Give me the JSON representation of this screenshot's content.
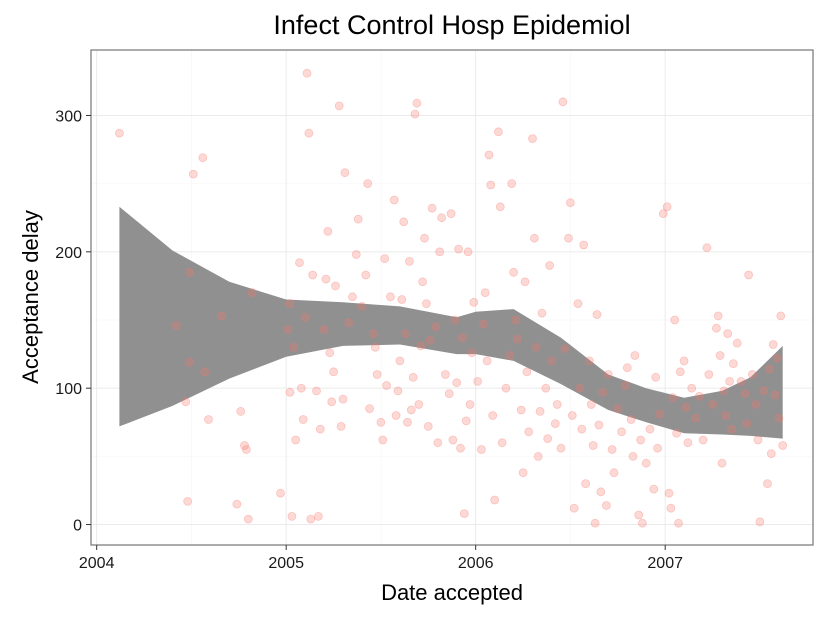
{
  "chart_data": {
    "type": "scatter",
    "title": "Infect Control Hosp Epidemiol",
    "xlabel": "Date accepted",
    "ylabel": "Acceptance delay",
    "xlim": [
      2003.97,
      2007.78
    ],
    "ylim": [
      -15,
      348
    ],
    "xticks": [
      2004,
      2005,
      2006,
      2007
    ],
    "xtick_labels": [
      "2004",
      "2005",
      "2006",
      "2007"
    ],
    "yticks": [
      0,
      100,
      200,
      300
    ],
    "ytick_labels": [
      "0",
      "100",
      "200",
      "300"
    ],
    "grid": true,
    "colors": {
      "points": "#f8766d",
      "band": "#8c8c8c",
      "panel_border": "#7f7f7f",
      "grid_major": "#ebebeb",
      "grid_minor": "#f5f5f5"
    },
    "points": [
      [
        2004.12,
        287
      ],
      [
        2004.42,
        146
      ],
      [
        2004.47,
        90
      ],
      [
        2004.48,
        17
      ],
      [
        2004.49,
        185
      ],
      [
        2004.49,
        119
      ],
      [
        2004.51,
        257
      ],
      [
        2004.56,
        269
      ],
      [
        2004.57,
        112
      ],
      [
        2004.59,
        77
      ],
      [
        2004.66,
        153
      ],
      [
        2004.74,
        15
      ],
      [
        2004.76,
        83
      ],
      [
        2004.78,
        58
      ],
      [
        2004.79,
        55
      ],
      [
        2004.8,
        4
      ],
      [
        2004.82,
        170
      ],
      [
        2004.97,
        23
      ],
      [
        2005.01,
        143
      ],
      [
        2005.02,
        162
      ],
      [
        2005.02,
        97
      ],
      [
        2005.03,
        6
      ],
      [
        2005.04,
        130
      ],
      [
        2005.05,
        62
      ],
      [
        2005.07,
        192
      ],
      [
        2005.08,
        100
      ],
      [
        2005.09,
        77
      ],
      [
        2005.1,
        152
      ],
      [
        2005.11,
        331
      ],
      [
        2005.12,
        287
      ],
      [
        2005.13,
        4
      ],
      [
        2005.14,
        183
      ],
      [
        2005.16,
        98
      ],
      [
        2005.17,
        6
      ],
      [
        2005.18,
        70
      ],
      [
        2005.2,
        143
      ],
      [
        2005.21,
        180
      ],
      [
        2005.22,
        215
      ],
      [
        2005.23,
        126
      ],
      [
        2005.24,
        90
      ],
      [
        2005.25,
        112
      ],
      [
        2005.26,
        175
      ],
      [
        2005.28,
        307
      ],
      [
        2005.29,
        72
      ],
      [
        2005.3,
        92
      ],
      [
        2005.31,
        258
      ],
      [
        2005.33,
        148
      ],
      [
        2005.35,
        167
      ],
      [
        2005.37,
        198
      ],
      [
        2005.38,
        224
      ],
      [
        2005.4,
        160
      ],
      [
        2005.42,
        183
      ],
      [
        2005.43,
        250
      ],
      [
        2005.44,
        85
      ],
      [
        2005.46,
        140
      ],
      [
        2005.47,
        130
      ],
      [
        2005.48,
        110
      ],
      [
        2005.5,
        75
      ],
      [
        2005.51,
        62
      ],
      [
        2005.52,
        195
      ],
      [
        2005.53,
        102
      ],
      [
        2005.55,
        167
      ],
      [
        2005.57,
        238
      ],
      [
        2005.58,
        80
      ],
      [
        2005.59,
        98
      ],
      [
        2005.6,
        120
      ],
      [
        2005.61,
        165
      ],
      [
        2005.62,
        222
      ],
      [
        2005.63,
        140
      ],
      [
        2005.64,
        75
      ],
      [
        2005.65,
        193
      ],
      [
        2005.66,
        84
      ],
      [
        2005.67,
        108
      ],
      [
        2005.68,
        301
      ],
      [
        2005.69,
        309
      ],
      [
        2005.7,
        88
      ],
      [
        2005.71,
        131
      ],
      [
        2005.72,
        178
      ],
      [
        2005.73,
        210
      ],
      [
        2005.74,
        162
      ],
      [
        2005.75,
        72
      ],
      [
        2005.76,
        135
      ],
      [
        2005.77,
        232
      ],
      [
        2005.79,
        145
      ],
      [
        2005.8,
        60
      ],
      [
        2005.81,
        200
      ],
      [
        2005.82,
        225
      ],
      [
        2005.84,
        110
      ],
      [
        2005.86,
        96
      ],
      [
        2005.87,
        228
      ],
      [
        2005.88,
        62
      ],
      [
        2005.89,
        150
      ],
      [
        2005.9,
        104
      ],
      [
        2005.91,
        202
      ],
      [
        2005.92,
        56
      ],
      [
        2005.93,
        137
      ],
      [
        2005.94,
        8
      ],
      [
        2005.95,
        76
      ],
      [
        2005.96,
        200
      ],
      [
        2005.97,
        88
      ],
      [
        2005.98,
        126
      ],
      [
        2005.99,
        163
      ],
      [
        2006.01,
        105
      ],
      [
        2006.03,
        55
      ],
      [
        2006.04,
        147
      ],
      [
        2006.05,
        170
      ],
      [
        2006.06,
        120
      ],
      [
        2006.07,
        271
      ],
      [
        2006.08,
        249
      ],
      [
        2006.09,
        80
      ],
      [
        2006.1,
        18
      ],
      [
        2006.12,
        288
      ],
      [
        2006.13,
        233
      ],
      [
        2006.14,
        60
      ],
      [
        2006.16,
        100
      ],
      [
        2006.18,
        124
      ],
      [
        2006.19,
        250
      ],
      [
        2006.2,
        185
      ],
      [
        2006.21,
        150
      ],
      [
        2006.22,
        136
      ],
      [
        2006.24,
        84
      ],
      [
        2006.25,
        38
      ],
      [
        2006.26,
        178
      ],
      [
        2006.27,
        112
      ],
      [
        2006.28,
        68
      ],
      [
        2006.3,
        283
      ],
      [
        2006.31,
        210
      ],
      [
        2006.32,
        130
      ],
      [
        2006.33,
        50
      ],
      [
        2006.34,
        83
      ],
      [
        2006.35,
        155
      ],
      [
        2006.37,
        100
      ],
      [
        2006.38,
        63
      ],
      [
        2006.39,
        190
      ],
      [
        2006.4,
        120
      ],
      [
        2006.42,
        74
      ],
      [
        2006.43,
        88
      ],
      [
        2006.45,
        56
      ],
      [
        2006.46,
        310
      ],
      [
        2006.47,
        129
      ],
      [
        2006.49,
        210
      ],
      [
        2006.5,
        236
      ],
      [
        2006.51,
        80
      ],
      [
        2006.52,
        12
      ],
      [
        2006.54,
        162
      ],
      [
        2006.55,
        100
      ],
      [
        2006.56,
        70
      ],
      [
        2006.57,
        205
      ],
      [
        2006.58,
        30
      ],
      [
        2006.6,
        120
      ],
      [
        2006.61,
        88
      ],
      [
        2006.62,
        58
      ],
      [
        2006.63,
        1
      ],
      [
        2006.64,
        154
      ],
      [
        2006.65,
        73
      ],
      [
        2006.66,
        24
      ],
      [
        2006.67,
        97
      ],
      [
        2006.69,
        14
      ],
      [
        2006.7,
        110
      ],
      [
        2006.72,
        55
      ],
      [
        2006.73,
        38
      ],
      [
        2006.75,
        85
      ],
      [
        2006.77,
        68
      ],
      [
        2006.79,
        102
      ],
      [
        2006.8,
        115
      ],
      [
        2006.82,
        77
      ],
      [
        2006.83,
        50
      ],
      [
        2006.84,
        124
      ],
      [
        2006.86,
        7
      ],
      [
        2006.87,
        62
      ],
      [
        2006.88,
        1
      ],
      [
        2006.9,
        45
      ],
      [
        2006.92,
        70
      ],
      [
        2006.94,
        26
      ],
      [
        2006.95,
        108
      ],
      [
        2006.96,
        56
      ],
      [
        2006.97,
        81
      ],
      [
        2006.99,
        228
      ],
      [
        2007.01,
        233
      ],
      [
        2007.02,
        23
      ],
      [
        2007.03,
        12
      ],
      [
        2007.04,
        93
      ],
      [
        2007.05,
        150
      ],
      [
        2007.06,
        67
      ],
      [
        2007.07,
        1
      ],
      [
        2007.08,
        112
      ],
      [
        2007.1,
        120
      ],
      [
        2007.11,
        86
      ],
      [
        2007.12,
        60
      ],
      [
        2007.14,
        100
      ],
      [
        2007.16,
        78
      ],
      [
        2007.18,
        94
      ],
      [
        2007.2,
        62
      ],
      [
        2007.22,
        203
      ],
      [
        2007.23,
        110
      ],
      [
        2007.25,
        88
      ],
      [
        2007.27,
        144
      ],
      [
        2007.28,
        153
      ],
      [
        2007.29,
        124
      ],
      [
        2007.3,
        45
      ],
      [
        2007.31,
        98
      ],
      [
        2007.32,
        80
      ],
      [
        2007.33,
        140
      ],
      [
        2007.34,
        105
      ],
      [
        2007.35,
        70
      ],
      [
        2007.36,
        118
      ],
      [
        2007.38,
        133
      ],
      [
        2007.4,
        105
      ],
      [
        2007.42,
        96
      ],
      [
        2007.43,
        74
      ],
      [
        2007.44,
        183
      ],
      [
        2007.46,
        110
      ],
      [
        2007.48,
        88
      ],
      [
        2007.49,
        62
      ],
      [
        2007.5,
        2
      ],
      [
        2007.52,
        98
      ],
      [
        2007.54,
        30
      ],
      [
        2007.55,
        114
      ],
      [
        2007.56,
        52
      ],
      [
        2007.57,
        132
      ],
      [
        2007.58,
        95
      ],
      [
        2007.59,
        122
      ],
      [
        2007.6,
        78
      ],
      [
        2007.61,
        153
      ],
      [
        2007.62,
        58
      ]
    ],
    "smooth_band": {
      "x": [
        2004.12,
        2004.4,
        2004.7,
        2005.0,
        2005.3,
        2005.6,
        2005.9,
        2006.0,
        2006.2,
        2006.45,
        2006.7,
        2006.9,
        2007.1,
        2007.3,
        2007.45,
        2007.62
      ],
      "upper": [
        233,
        201,
        178,
        165,
        163,
        160,
        152,
        156,
        158,
        137,
        110,
        100,
        93,
        98,
        108,
        131
      ],
      "lower": [
        72,
        87,
        107,
        123,
        131,
        132,
        125,
        125,
        120,
        103,
        84,
        75,
        67,
        66,
        65,
        63
      ]
    }
  }
}
